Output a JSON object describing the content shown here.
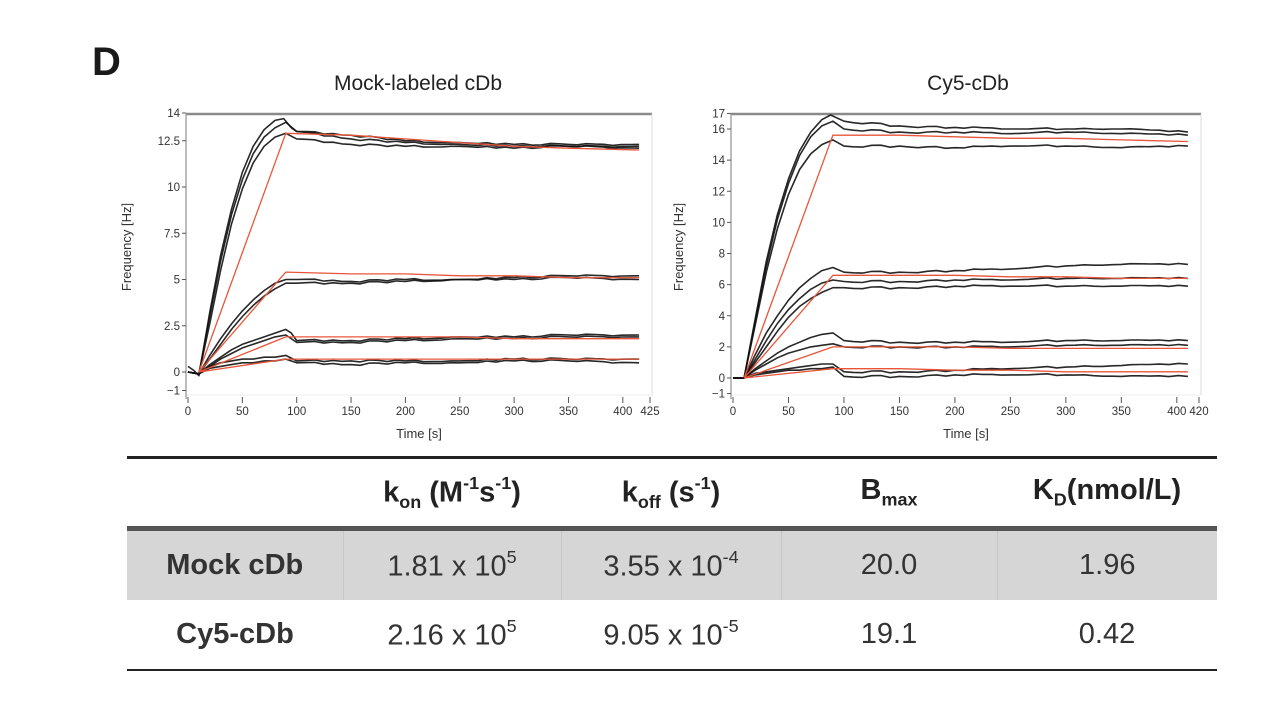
{
  "panel_label": "D",
  "chart_data": [
    {
      "type": "line",
      "title": "Mock-labeled cDb",
      "xlabel": "Time [s]",
      "ylabel": "Frequency [Hz]",
      "xlim": [
        0,
        425
      ],
      "ylim": [
        -1,
        14
      ],
      "xticks": [
        0,
        50,
        100,
        150,
        200,
        250,
        300,
        350,
        400,
        425
      ],
      "xtick_labels": [
        "0",
        "50",
        "100",
        "150",
        "200",
        "250",
        "300",
        "350",
        "400",
        "425"
      ],
      "yticks": [
        -1,
        0,
        2.5,
        5,
        7.5,
        10,
        12.5,
        14
      ],
      "ytick_labels": [
        "−1",
        "0",
        "2.5",
        "5",
        "7.5",
        "10",
        "12.5",
        "14"
      ],
      "grid": false,
      "colors": {
        "measured": "#111111",
        "fit": "#e8553a"
      },
      "series": [
        {
          "name": "measured-1a",
          "kind": "measured",
          "x": [
            0,
            5,
            10,
            20,
            30,
            40,
            50,
            60,
            70,
            80,
            88,
            95,
            100,
            150,
            200,
            250,
            300,
            350,
            415
          ],
          "y": [
            0.3,
            0.1,
            -0.2,
            3.2,
            6.3,
            8.8,
            10.8,
            12.2,
            13.1,
            13.6,
            13.7,
            13.2,
            13.0,
            12.8,
            12.5,
            12.4,
            12.3,
            12.3,
            12.3
          ]
        },
        {
          "name": "measured-1b",
          "kind": "measured",
          "x": [
            0,
            10,
            20,
            30,
            40,
            50,
            60,
            70,
            80,
            90,
            100,
            150,
            200,
            250,
            300,
            350,
            415
          ],
          "y": [
            0,
            -0.1,
            3.0,
            6.0,
            8.5,
            10.4,
            11.8,
            12.7,
            13.2,
            13.5,
            13.0,
            12.6,
            12.4,
            12.3,
            12.2,
            12.2,
            12.2
          ]
        },
        {
          "name": "measured-1c",
          "kind": "measured",
          "x": [
            0,
            10,
            20,
            30,
            40,
            50,
            60,
            70,
            80,
            90,
            100,
            150,
            200,
            250,
            300,
            350,
            415
          ],
          "y": [
            0,
            -0.1,
            2.6,
            5.5,
            8.0,
            9.9,
            11.3,
            12.2,
            12.7,
            12.9,
            12.6,
            12.3,
            12.2,
            12.2,
            12.1,
            12.2,
            12.1
          ]
        },
        {
          "name": "fit-1",
          "kind": "fit",
          "x": [
            10,
            90,
            150,
            200,
            250,
            300,
            350,
            415
          ],
          "y": [
            0,
            12.9,
            12.8,
            12.6,
            12.4,
            12.2,
            12.1,
            12.0
          ]
        },
        {
          "name": "measured-2a",
          "kind": "measured",
          "x": [
            0,
            10,
            20,
            30,
            40,
            50,
            60,
            70,
            80,
            90,
            100,
            150,
            200,
            250,
            300,
            350,
            415
          ],
          "y": [
            0,
            -0.1,
            0.9,
            1.8,
            2.6,
            3.3,
            3.9,
            4.4,
            4.8,
            5.0,
            5.0,
            4.9,
            5.0,
            5.0,
            5.1,
            5.2,
            5.2
          ]
        },
        {
          "name": "measured-2b",
          "kind": "measured",
          "x": [
            0,
            10,
            20,
            30,
            40,
            50,
            60,
            70,
            80,
            90,
            100,
            150,
            200,
            250,
            300,
            350,
            415
          ],
          "y": [
            0,
            -0.1,
            0.7,
            1.5,
            2.3,
            3.0,
            3.6,
            4.1,
            4.5,
            4.8,
            4.8,
            4.8,
            4.9,
            5.0,
            5.0,
            5.1,
            5.0
          ]
        },
        {
          "name": "fit-2",
          "kind": "fit",
          "x": [
            10,
            90,
            150,
            200,
            250,
            300,
            350,
            415
          ],
          "y": [
            0,
            5.4,
            5.3,
            5.3,
            5.2,
            5.2,
            5.1,
            5.1
          ]
        },
        {
          "name": "measured-3a",
          "kind": "measured",
          "x": [
            0,
            10,
            20,
            30,
            40,
            50,
            60,
            70,
            80,
            90,
            95,
            100,
            150,
            200,
            250,
            300,
            350,
            415
          ],
          "y": [
            0,
            -0.1,
            0.4,
            0.8,
            1.2,
            1.5,
            1.7,
            1.9,
            2.1,
            2.3,
            2.1,
            1.7,
            1.7,
            1.8,
            1.9,
            1.9,
            2.0,
            2.0
          ]
        },
        {
          "name": "measured-3b",
          "kind": "measured",
          "x": [
            0,
            10,
            20,
            30,
            40,
            50,
            60,
            70,
            80,
            90,
            100,
            150,
            200,
            250,
            300,
            350,
            415
          ],
          "y": [
            0,
            -0.1,
            0.3,
            0.7,
            1.0,
            1.3,
            1.5,
            1.7,
            1.9,
            2.0,
            1.6,
            1.6,
            1.7,
            1.8,
            1.8,
            1.9,
            1.9
          ]
        },
        {
          "name": "fit-3",
          "kind": "fit",
          "x": [
            10,
            90,
            150,
            200,
            250,
            300,
            350,
            415
          ],
          "y": [
            0,
            1.9,
            1.9,
            1.9,
            1.9,
            1.8,
            1.8,
            1.8
          ]
        },
        {
          "name": "measured-4a",
          "kind": "measured",
          "x": [
            0,
            10,
            20,
            30,
            40,
            50,
            60,
            70,
            80,
            90,
            100,
            150,
            200,
            250,
            300,
            350,
            415
          ],
          "y": [
            0,
            -0.1,
            0.3,
            0.5,
            0.6,
            0.7,
            0.7,
            0.8,
            0.8,
            0.9,
            0.6,
            0.6,
            0.6,
            0.6,
            0.7,
            0.7,
            0.7
          ]
        },
        {
          "name": "measured-4b",
          "kind": "measured",
          "x": [
            0,
            10,
            20,
            30,
            40,
            50,
            60,
            70,
            80,
            90,
            100,
            150,
            200,
            250,
            300,
            350,
            415
          ],
          "y": [
            0,
            -0.1,
            0.2,
            0.3,
            0.4,
            0.5,
            0.5,
            0.6,
            0.6,
            0.7,
            0.5,
            0.4,
            0.5,
            0.5,
            0.6,
            0.6,
            0.5
          ]
        },
        {
          "name": "fit-4",
          "kind": "fit",
          "x": [
            10,
            90,
            150,
            200,
            250,
            300,
            350,
            415
          ],
          "y": [
            0,
            0.7,
            0.7,
            0.7,
            0.7,
            0.7,
            0.7,
            0.7
          ]
        }
      ]
    },
    {
      "type": "line",
      "title": "Cy5-cDb",
      "xlabel": "Time [s]",
      "ylabel": "Frequency [Hz]",
      "xlim": [
        0,
        420
      ],
      "ylim": [
        -1,
        17
      ],
      "xticks": [
        0,
        50,
        100,
        150,
        200,
        250,
        300,
        350,
        400,
        420
      ],
      "xtick_labels": [
        "0",
        "50",
        "100",
        "150",
        "200",
        "250",
        "300",
        "350",
        "400",
        "420"
      ],
      "yticks": [
        -1,
        0,
        2,
        4,
        6,
        8,
        10,
        12,
        14,
        16,
        17
      ],
      "ytick_labels": [
        "−1",
        "0",
        "2",
        "4",
        "6",
        "8",
        "10",
        "12",
        "14",
        "16",
        "17"
      ],
      "grid": false,
      "colors": {
        "measured": "#111111",
        "fit": "#e8553a"
      },
      "series": [
        {
          "name": "measured-1a",
          "kind": "measured",
          "x": [
            0,
            10,
            20,
            30,
            40,
            50,
            60,
            70,
            80,
            88,
            100,
            150,
            200,
            250,
            300,
            350,
            410
          ],
          "y": [
            0,
            0,
            3.8,
            7.5,
            10.5,
            12.8,
            14.6,
            15.8,
            16.6,
            16.9,
            16.5,
            16.2,
            16.1,
            16.0,
            16.0,
            16.0,
            15.8
          ]
        },
        {
          "name": "measured-1b",
          "kind": "measured",
          "x": [
            0,
            10,
            20,
            30,
            40,
            50,
            60,
            70,
            80,
            90,
            100,
            150,
            200,
            250,
            300,
            350,
            410
          ],
          "y": [
            0,
            0,
            3.6,
            7.2,
            10.2,
            12.5,
            14.3,
            15.5,
            16.2,
            16.5,
            16.0,
            15.8,
            15.8,
            15.7,
            15.8,
            15.7,
            15.6
          ]
        },
        {
          "name": "measured-1c",
          "kind": "measured",
          "x": [
            0,
            10,
            20,
            30,
            40,
            50,
            60,
            70,
            80,
            90,
            100,
            150,
            200,
            250,
            300,
            350,
            410
          ],
          "y": [
            0,
            0,
            3.4,
            6.8,
            9.6,
            11.8,
            13.4,
            14.4,
            15.0,
            15.3,
            14.9,
            14.9,
            14.8,
            14.9,
            14.9,
            14.8,
            14.9
          ]
        },
        {
          "name": "fit-1",
          "kind": "fit",
          "x": [
            10,
            90,
            150,
            200,
            250,
            300,
            350,
            410
          ],
          "y": [
            0,
            15.6,
            15.6,
            15.5,
            15.4,
            15.4,
            15.3,
            15.2
          ]
        },
        {
          "name": "measured-2a",
          "kind": "measured",
          "x": [
            0,
            10,
            20,
            30,
            40,
            50,
            60,
            70,
            80,
            90,
            100,
            150,
            200,
            250,
            300,
            350,
            410
          ],
          "y": [
            0,
            0,
            1.5,
            2.9,
            4.0,
            5.0,
            5.8,
            6.4,
            6.9,
            7.1,
            6.8,
            6.8,
            6.9,
            7.0,
            7.2,
            7.3,
            7.3
          ]
        },
        {
          "name": "measured-2b",
          "kind": "measured",
          "x": [
            0,
            10,
            20,
            30,
            40,
            50,
            60,
            70,
            80,
            90,
            100,
            150,
            200,
            250,
            300,
            350,
            410
          ],
          "y": [
            0,
            0,
            1.2,
            2.4,
            3.5,
            4.4,
            5.1,
            5.7,
            6.1,
            6.3,
            6.2,
            6.2,
            6.3,
            6.3,
            6.4,
            6.4,
            6.4
          ]
        },
        {
          "name": "measured-2c",
          "kind": "measured",
          "x": [
            0,
            10,
            20,
            30,
            40,
            50,
            60,
            70,
            80,
            90,
            100,
            150,
            200,
            250,
            300,
            350,
            410
          ],
          "y": [
            0,
            0,
            1.0,
            2.0,
            3.0,
            3.9,
            4.6,
            5.1,
            5.5,
            5.8,
            5.8,
            5.8,
            5.9,
            5.9,
            5.9,
            5.9,
            5.9
          ]
        },
        {
          "name": "fit-2",
          "kind": "fit",
          "x": [
            10,
            90,
            150,
            200,
            250,
            300,
            350,
            410
          ],
          "y": [
            0,
            6.6,
            6.6,
            6.6,
            6.5,
            6.5,
            6.4,
            6.4
          ]
        },
        {
          "name": "measured-3a",
          "kind": "measured",
          "x": [
            0,
            10,
            20,
            30,
            40,
            50,
            60,
            70,
            80,
            90,
            100,
            150,
            200,
            250,
            300,
            350,
            410
          ],
          "y": [
            0,
            0,
            0.6,
            1.1,
            1.6,
            2.0,
            2.3,
            2.6,
            2.8,
            2.9,
            2.4,
            2.3,
            2.3,
            2.3,
            2.4,
            2.4,
            2.4
          ]
        },
        {
          "name": "measured-3b",
          "kind": "measured",
          "x": [
            0,
            10,
            20,
            30,
            40,
            50,
            60,
            70,
            80,
            90,
            100,
            150,
            200,
            250,
            300,
            350,
            410
          ],
          "y": [
            0,
            0,
            0.5,
            0.9,
            1.3,
            1.6,
            1.8,
            2.0,
            2.1,
            2.2,
            2.0,
            2.0,
            2.0,
            2.0,
            2.1,
            2.1,
            2.1
          ]
        },
        {
          "name": "fit-3",
          "kind": "fit",
          "x": [
            10,
            90,
            150,
            200,
            250,
            300,
            350,
            410
          ],
          "y": [
            0,
            2.0,
            2.0,
            2.0,
            1.9,
            1.9,
            1.9,
            1.9
          ]
        },
        {
          "name": "measured-4a",
          "kind": "measured",
          "x": [
            0,
            10,
            20,
            30,
            40,
            50,
            60,
            70,
            80,
            90,
            100,
            150,
            200,
            250,
            300,
            350,
            410
          ],
          "y": [
            0,
            0,
            0.3,
            0.4,
            0.5,
            0.6,
            0.7,
            0.8,
            0.9,
            0.9,
            0.4,
            0.4,
            0.5,
            0.6,
            0.7,
            0.8,
            0.9
          ]
        },
        {
          "name": "measured-4b",
          "kind": "measured",
          "x": [
            0,
            10,
            20,
            30,
            40,
            50,
            60,
            70,
            80,
            90,
            100,
            150,
            200,
            250,
            300,
            350,
            410
          ],
          "y": [
            0,
            0,
            0.2,
            0.3,
            0.4,
            0.5,
            0.5,
            0.6,
            0.6,
            0.7,
            0.1,
            0.1,
            0.2,
            0.2,
            0.2,
            0.1,
            0.1
          ]
        },
        {
          "name": "fit-4",
          "kind": "fit",
          "x": [
            10,
            90,
            150,
            200,
            250,
            300,
            350,
            410
          ],
          "y": [
            0,
            0.6,
            0.6,
            0.5,
            0.5,
            0.4,
            0.4,
            0.4
          ]
        }
      ]
    }
  ],
  "table": {
    "headers": [
      {
        "main": "",
        "sub": "",
        "rest": ""
      },
      {
        "main": "k",
        "sub": "on",
        "rest": " (M",
        "sup1": "-1",
        "mid": "s",
        "sup2": "-1",
        "end": ")"
      },
      {
        "main": "k",
        "sub": "off",
        "rest": " (s",
        "sup1": "-1",
        "end": ")"
      },
      {
        "main": "B",
        "sub": "max"
      },
      {
        "main": "K",
        "sub": "D",
        "rest": "(nmol/L)"
      }
    ],
    "rows": [
      {
        "label": "Mock cDb",
        "kon_base": "1.81 x 10",
        "kon_exp": "5",
        "koff_base": "3.55 x 10",
        "koff_exp": "-4",
        "bmax": "20.0",
        "kd": "1.96"
      },
      {
        "label": "Cy5-cDb",
        "kon_base": "2.16 x 10",
        "kon_exp": "5",
        "koff_base": "9.05 x 10",
        "koff_exp": "-5",
        "bmax": "19.1",
        "kd": "0.42"
      }
    ]
  }
}
